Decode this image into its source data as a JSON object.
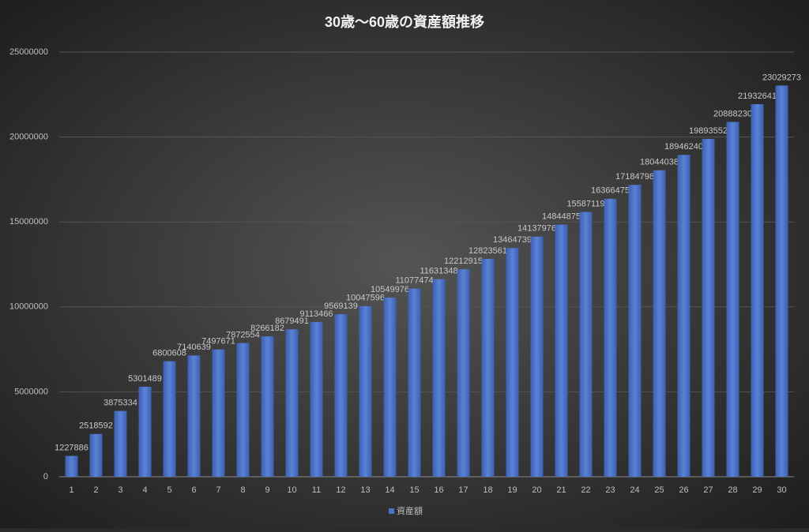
{
  "chart_data": {
    "type": "bar",
    "title": "30歳～60歳の資産額推移",
    "categories": [
      "1",
      "2",
      "3",
      "4",
      "5",
      "6",
      "7",
      "8",
      "9",
      "10",
      "11",
      "12",
      "13",
      "14",
      "15",
      "16",
      "17",
      "18",
      "19",
      "20",
      "21",
      "22",
      "23",
      "24",
      "25",
      "26",
      "27",
      "28",
      "29",
      "30"
    ],
    "series": [
      {
        "name": "資産額",
        "color": "#4a72c9",
        "values": [
          1227886,
          2518592,
          3875334,
          5301489,
          6800608,
          7140639,
          7497671,
          7872554,
          8266182,
          8679491,
          9113466,
          9569139,
          10047596,
          10549976,
          11077474,
          11631348,
          12212915,
          12823561,
          13464739,
          14137976,
          14844875,
          15587119,
          16366475,
          17184798,
          18044038,
          18946240,
          19893552,
          20888230,
          21932641,
          23029273
        ]
      }
    ],
    "ylim": [
      0,
      25000000
    ],
    "yticks": [
      0,
      5000000,
      10000000,
      15000000,
      20000000,
      25000000
    ],
    "grid": true,
    "legend": "bottom"
  }
}
